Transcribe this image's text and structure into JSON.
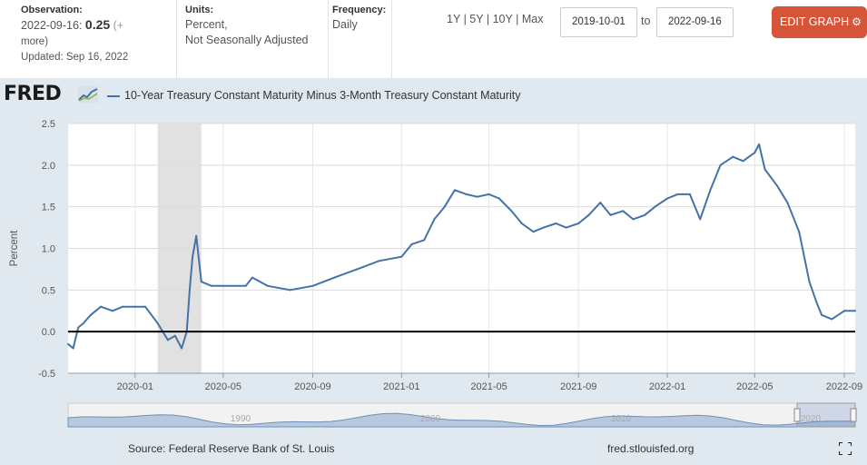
{
  "header": {
    "observation": {
      "label": "Observation:",
      "date": "2022-09-16:",
      "value": "0.25",
      "more_a": "(+",
      "more_b": "more)",
      "updated": "Updated: Sep 16, 2022"
    },
    "units": {
      "label": "Units:",
      "line1": "Percent,",
      "line2": "Not Seasonally Adjusted"
    },
    "frequency": {
      "label": "Frequency:",
      "value": "Daily"
    },
    "ranges": [
      "1Y",
      "5Y",
      "10Y",
      "Max"
    ],
    "range_sep": "|",
    "date_from": "2019-10-01",
    "to_label": "to",
    "date_to": "2022-09-16",
    "edit_label": "EDIT GRAPH"
  },
  "brand": {
    "logo": "FRED",
    "accent": "#4572a7",
    "button_color": "#d65438"
  },
  "footer": {
    "source": "Source: Federal Reserve Bank of St. Louis",
    "site": "fred.stlouisfed.org"
  },
  "navigator": {
    "labels": [
      "1990",
      "2000",
      "2010",
      "2020"
    ]
  },
  "chart_data": {
    "type": "line",
    "title": "10-Year Treasury Constant Maturity Minus 3-Month Treasury Constant Maturity",
    "ylabel": "Percent",
    "xlabel": "",
    "ylim": [
      -0.5,
      2.5
    ],
    "yticks": [
      -0.5,
      0.0,
      0.5,
      1.0,
      1.5,
      2.0,
      2.5
    ],
    "ytick_labels": [
      "-0.5",
      "0.0",
      "0.5",
      "1.0",
      "1.5",
      "2.0",
      "2.5"
    ],
    "xlim": [
      "2019-10-01",
      "2022-09-16"
    ],
    "xticks": [
      "2020-01-01",
      "2020-05-01",
      "2020-09-01",
      "2021-01-01",
      "2021-05-01",
      "2021-09-01",
      "2022-01-01",
      "2022-05-01",
      "2022-09-01"
    ],
    "xtick_labels": [
      "2020-01",
      "2020-05",
      "2020-09",
      "2021-01",
      "2021-05",
      "2021-09",
      "2022-01",
      "2022-05",
      "2022-09"
    ],
    "recession": {
      "start": "2020-02-01",
      "end": "2020-04-01"
    },
    "reference_line": 0.0,
    "series": [
      {
        "name": "10-Year Treasury Constant Maturity Minus 3-Month Treasury Constant Maturity",
        "x": [
          "2019-10-01",
          "2019-10-08",
          "2019-10-15",
          "2019-10-22",
          "2019-11-01",
          "2019-11-15",
          "2019-12-01",
          "2019-12-15",
          "2020-01-01",
          "2020-01-15",
          "2020-02-01",
          "2020-02-15",
          "2020-02-25",
          "2020-03-05",
          "2020-03-12",
          "2020-03-16",
          "2020-03-20",
          "2020-03-25",
          "2020-04-01",
          "2020-04-15",
          "2020-05-01",
          "2020-06-01",
          "2020-06-10",
          "2020-07-01",
          "2020-08-01",
          "2020-09-01",
          "2020-10-01",
          "2020-11-01",
          "2020-12-01",
          "2021-01-01",
          "2021-01-15",
          "2021-02-01",
          "2021-02-15",
          "2021-03-01",
          "2021-03-15",
          "2021-03-31",
          "2021-04-15",
          "2021-05-01",
          "2021-05-15",
          "2021-06-01",
          "2021-06-15",
          "2021-07-01",
          "2021-07-15",
          "2021-08-01",
          "2021-08-15",
          "2021-09-01",
          "2021-09-15",
          "2021-10-01",
          "2021-10-15",
          "2021-11-01",
          "2021-11-15",
          "2021-12-01",
          "2021-12-15",
          "2022-01-01",
          "2022-01-15",
          "2022-02-01",
          "2022-02-15",
          "2022-03-01",
          "2022-03-15",
          "2022-04-01",
          "2022-04-15",
          "2022-05-01",
          "2022-05-07",
          "2022-05-15",
          "2022-06-01",
          "2022-06-15",
          "2022-07-01",
          "2022-07-15",
          "2022-07-25",
          "2022-08-01",
          "2022-08-15",
          "2022-09-01",
          "2022-09-16"
        ],
        "values": [
          -0.15,
          -0.2,
          0.05,
          0.1,
          0.2,
          0.3,
          0.25,
          0.3,
          0.3,
          0.3,
          0.1,
          -0.1,
          -0.05,
          -0.2,
          0.0,
          0.5,
          0.9,
          1.15,
          0.6,
          0.55,
          0.55,
          0.55,
          0.65,
          0.55,
          0.5,
          0.55,
          0.65,
          0.75,
          0.85,
          0.9,
          1.05,
          1.1,
          1.35,
          1.5,
          1.7,
          1.65,
          1.62,
          1.65,
          1.6,
          1.45,
          1.3,
          1.2,
          1.25,
          1.3,
          1.25,
          1.3,
          1.4,
          1.55,
          1.4,
          1.45,
          1.35,
          1.4,
          1.5,
          1.6,
          1.65,
          1.65,
          1.35,
          1.7,
          2.0,
          2.1,
          2.05,
          2.15,
          2.25,
          1.95,
          1.75,
          1.55,
          1.2,
          0.6,
          0.35,
          0.2,
          0.15,
          0.25,
          0.25
        ]
      }
    ]
  }
}
